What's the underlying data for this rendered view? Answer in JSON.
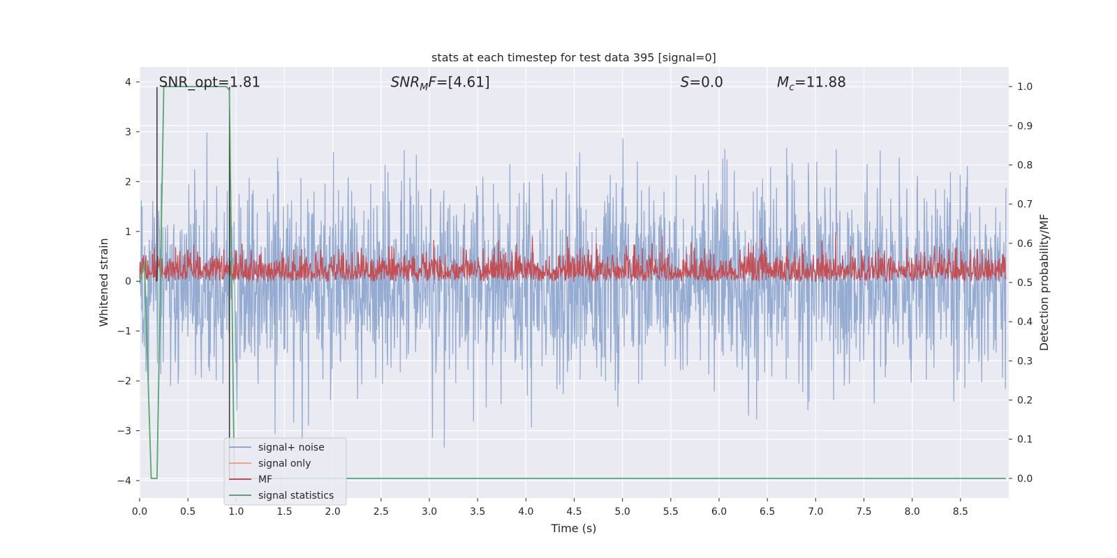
{
  "chart_data": {
    "type": "line",
    "title": "stats at each timestep for test data 395 [signal=0]",
    "xlabel": "Time (s)",
    "ylabel": "Whitened strain",
    "ylabel_right": "Detection probability/MF",
    "xlim": [
      0.0,
      9.0
    ],
    "ylim": [
      -4.35,
      4.3
    ],
    "ylim_right": [
      -0.05,
      1.05
    ],
    "x_ticks": [
      "0.0",
      "0.5",
      "1.0",
      "1.5",
      "2.0",
      "2.5",
      "3.0",
      "3.5",
      "4.0",
      "4.5",
      "5.0",
      "5.5",
      "6.0",
      "6.5",
      "7.0",
      "7.5",
      "8.0",
      "8.5"
    ],
    "x_tick_values": [
      0.0,
      0.5,
      1.0,
      1.5,
      2.0,
      2.5,
      3.0,
      3.5,
      4.0,
      4.5,
      5.0,
      5.5,
      6.0,
      6.5,
      7.0,
      7.5,
      8.0,
      8.5
    ],
    "y_ticks": [
      "4",
      "3",
      "2",
      "1",
      "0",
      "−1",
      "−2",
      "−3",
      "−4"
    ],
    "y_tick_values": [
      4,
      3,
      2,
      1,
      0,
      -1,
      -2,
      -3,
      -4
    ],
    "y_right_ticks": [
      "1.0",
      "0.9",
      "0.8",
      "0.7",
      "0.6",
      "0.5",
      "0.4",
      "0.3",
      "0.2",
      "0.1",
      "0.0"
    ],
    "y_right_tick_values": [
      1.0,
      0.9,
      0.8,
      0.7,
      0.6,
      0.5,
      0.4,
      0.3,
      0.2,
      0.1,
      0.0
    ],
    "grid": true,
    "legend_position": "lower-left",
    "annotations": [
      {
        "text": "SNR_opt=1.81",
        "x": 0.2,
        "y": 4.0
      },
      {
        "text": "SNR_M F=[4.61]",
        "x": 2.6,
        "y": 4.0
      },
      {
        "text": "S=0.0",
        "x": 5.6,
        "y": 4.0
      },
      {
        "text": "M_c=11.88",
        "x": 6.6,
        "y": 4.0
      }
    ],
    "vertical_markers": [
      {
        "x": 0.18,
        "y_top": 3.9,
        "y_bottom": 0.0
      },
      {
        "x": 0.93,
        "y_top": 3.9,
        "y_bottom": -4.0
      }
    ],
    "series": [
      {
        "name": "signal+ noise",
        "axis": "left",
        "color": "#8fa8d0",
        "description_values": {
          "typical_amplitude": 1.5,
          "peak_positive": 3.9,
          "peak_negative": -4.0,
          "samples": 2048
        }
      },
      {
        "name": "signal only",
        "axis": "left",
        "color": "#e8a585",
        "values": []
      },
      {
        "name": "MF",
        "axis": "right",
        "color": "#c44e52",
        "description_values": {
          "baseline": 0.5,
          "peak": 0.63,
          "samples": 2048
        }
      },
      {
        "name": "signal statistics",
        "axis": "right",
        "color": "#55a868",
        "x": [
          0.0,
          0.05,
          0.12,
          0.18,
          0.25,
          0.9,
          0.93,
          0.98,
          1.5,
          3.0,
          6.0,
          8.97
        ],
        "values": [
          0.5,
          0.55,
          0.0,
          0.0,
          1.0,
          1.0,
          0.99,
          0.0,
          0.0,
          0.0,
          0.0,
          0.0
        ]
      }
    ]
  }
}
